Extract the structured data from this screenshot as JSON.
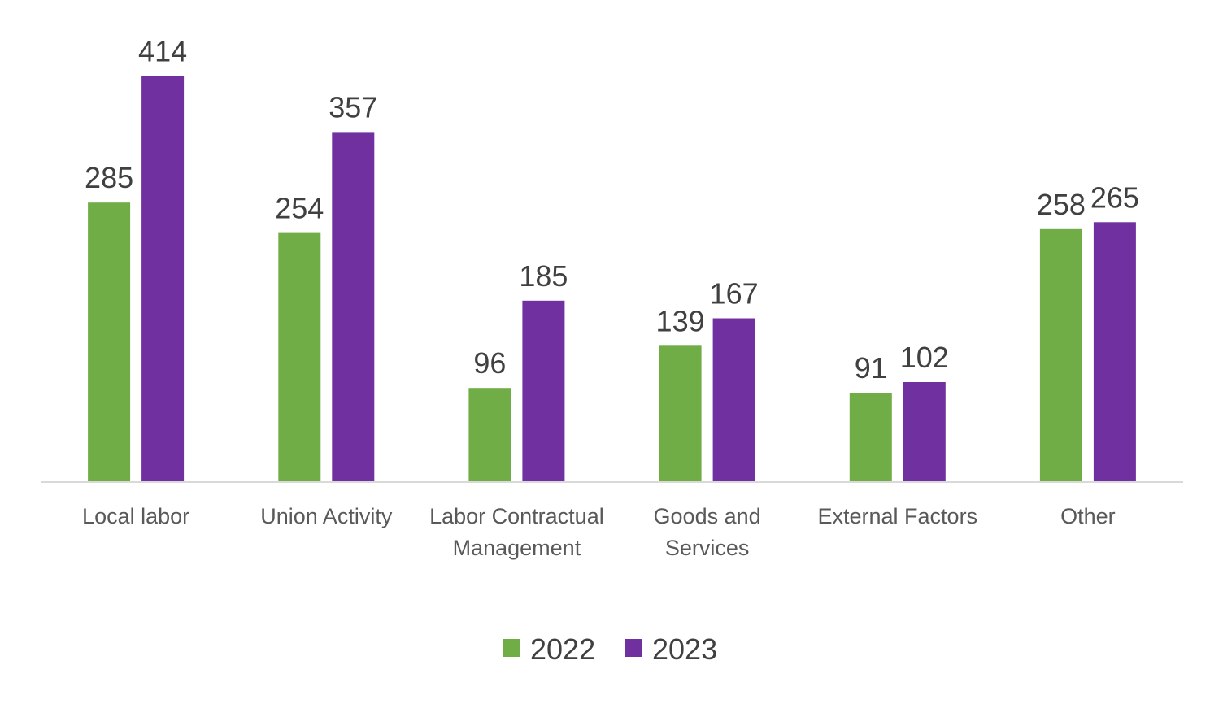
{
  "chart_data": {
    "type": "bar",
    "title": "",
    "xlabel": "",
    "ylabel": "",
    "categories": [
      [
        "Local labor"
      ],
      [
        "Union Activity"
      ],
      [
        "Labor Contractual",
        "Management"
      ],
      [
        "Goods and",
        "Services"
      ],
      [
        "External Factors"
      ],
      [
        "Other"
      ]
    ],
    "series": [
      {
        "name": "2022",
        "color": "#70ad47",
        "values": [
          285,
          254,
          96,
          139,
          91,
          258
        ]
      },
      {
        "name": "2023",
        "color": "#7030a0",
        "values": [
          414,
          357,
          185,
          167,
          102,
          265
        ]
      }
    ],
    "ylim": [
      0,
      450
    ],
    "grid": false,
    "data_labels": true,
    "legend_position": "bottom"
  }
}
